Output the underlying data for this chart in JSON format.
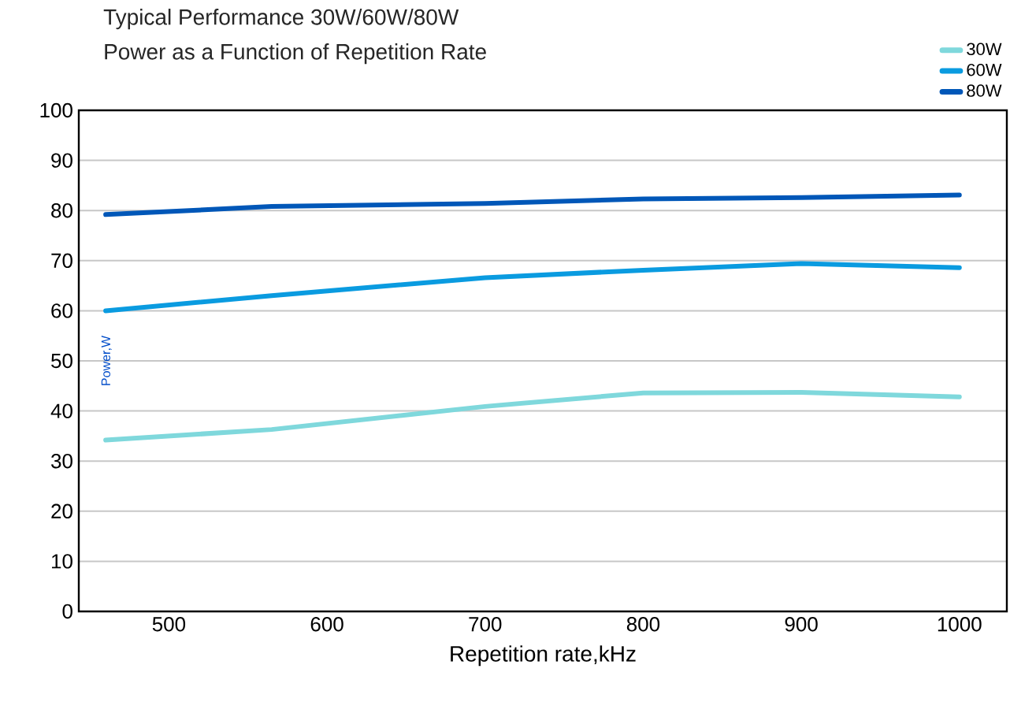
{
  "chart_data": {
    "type": "line",
    "title": "Typical Performance 30W/60W/80W",
    "subtitle": "Power as a Function of Repetition Rate",
    "xlabel": "Repetition rate,kHz",
    "ylabel": "Power,W",
    "x": [
      460,
      565,
      700,
      800,
      900,
      1000
    ],
    "series": [
      {
        "name": "30W",
        "color": "#7fd8dc",
        "values": [
          34.2,
          36.3,
          40.9,
          43.6,
          43.7,
          42.8
        ]
      },
      {
        "name": "60W",
        "color": "#0a9be0",
        "values": [
          60.0,
          63.0,
          66.6,
          68.1,
          69.4,
          68.6
        ]
      },
      {
        "name": "80W",
        "color": "#0057b8",
        "values": [
          79.2,
          80.8,
          81.4,
          82.3,
          82.6,
          83.1
        ]
      }
    ],
    "xlim": [
      443,
      1030
    ],
    "xticks": [
      500,
      600,
      700,
      800,
      900,
      1000
    ],
    "ylim": [
      0,
      100
    ],
    "yticks": [
      0,
      10,
      20,
      30,
      40,
      50,
      60,
      70,
      80,
      90,
      100
    ],
    "grid": "y",
    "legend": "top right",
    "marker": "none",
    "line_style": "solid"
  }
}
